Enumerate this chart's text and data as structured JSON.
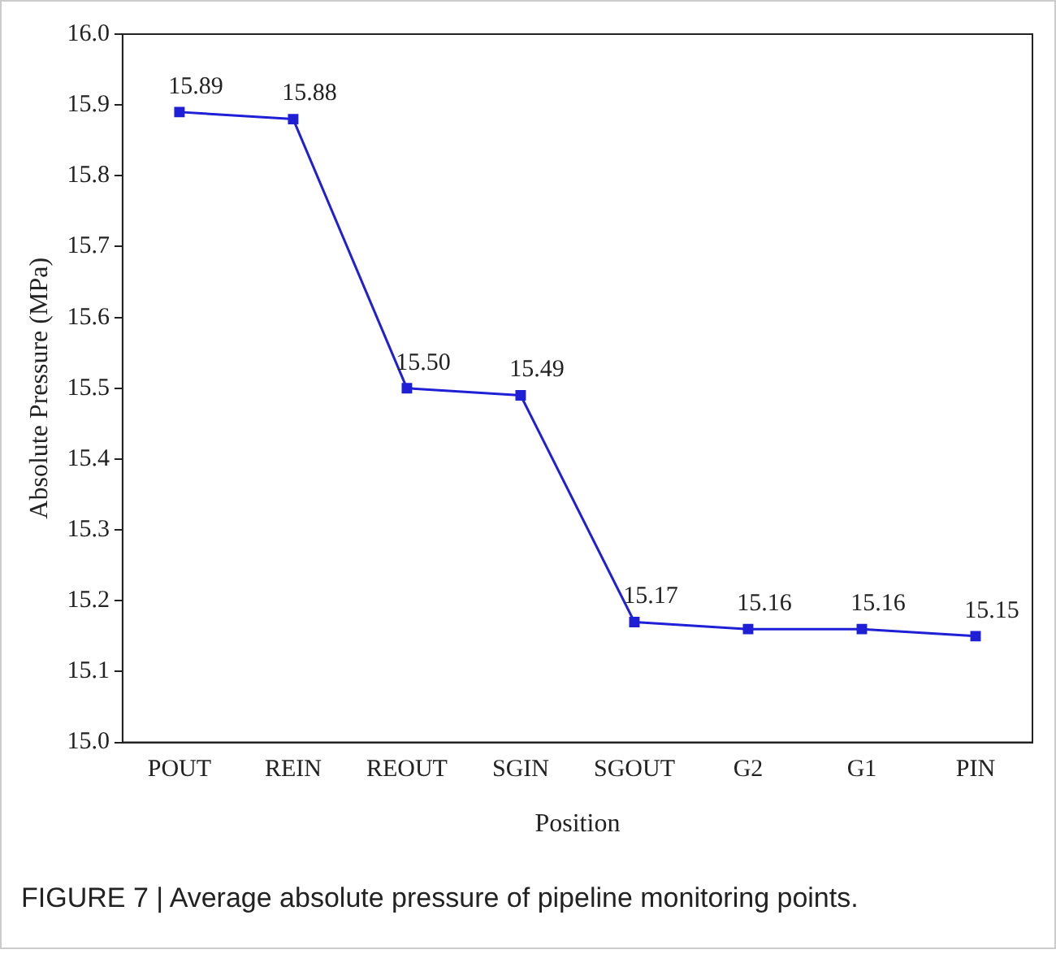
{
  "chart_data": {
    "type": "line",
    "xlabel": "Position",
    "ylabel": "Absolute Pressure (MPa)",
    "categories": [
      "POUT",
      "REIN",
      "REOUT",
      "SGIN",
      "SGOUT",
      "G2",
      "G1",
      "PIN"
    ],
    "series": [
      {
        "color": "#1f1fd6",
        "values": [
          15.89,
          15.88,
          15.5,
          15.49,
          15.17,
          15.16,
          15.16,
          15.15
        ],
        "value_labels": [
          "15.89",
          "15.88",
          "15.50",
          "15.49",
          "15.17",
          "15.16",
          "15.16",
          "15.15"
        ]
      }
    ],
    "ylim": [
      15.0,
      16.0
    ],
    "yticks": [
      {
        "value": 15.0,
        "label": "15.0"
      },
      {
        "value": 15.1,
        "label": "15.1"
      },
      {
        "value": 15.2,
        "label": "15.2"
      },
      {
        "value": 15.3,
        "label": "15.3"
      },
      {
        "value": 15.4,
        "label": "15.4"
      },
      {
        "value": 15.5,
        "label": "15.5"
      },
      {
        "value": 15.6,
        "label": "15.6"
      },
      {
        "value": 15.7,
        "label": "15.7"
      },
      {
        "value": 15.8,
        "label": "15.8"
      },
      {
        "value": 15.9,
        "label": "15.9"
      },
      {
        "value": 16.0,
        "label": "16.0"
      }
    ],
    "grid": false,
    "legend": false,
    "marker": "square",
    "line_style": "solid",
    "annotations": [
      "FIGURE 7 | Average absolute pressure of pipeline monitoring points."
    ]
  }
}
